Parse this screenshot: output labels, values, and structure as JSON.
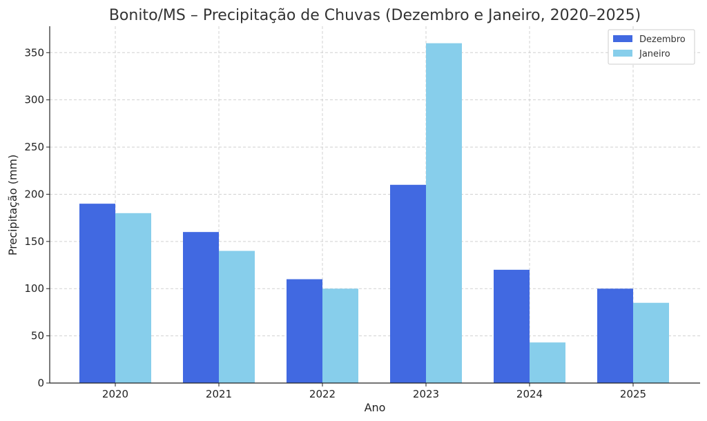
{
  "chart_data": {
    "type": "bar",
    "title": "Bonito/MS – Precipitação de Chuvas (Dezembro e Janeiro, 2020–2025)",
    "xlabel": "Ano",
    "ylabel": "Precipitação (mm)",
    "categories": [
      "2020",
      "2021",
      "2022",
      "2023",
      "2024",
      "2025"
    ],
    "series": [
      {
        "name": "Dezembro",
        "color": "#4169E1",
        "values": [
          190,
          160,
          110,
          210,
          120,
          100
        ]
      },
      {
        "name": "Janeiro",
        "color": "#87CEEB",
        "values": [
          180,
          140,
          100,
          360,
          43,
          85
        ]
      }
    ],
    "ylim": [
      0,
      378
    ],
    "yticks": [
      0,
      50,
      100,
      150,
      200,
      250,
      300,
      350
    ],
    "grid": true,
    "legend_position": "top-right"
  }
}
